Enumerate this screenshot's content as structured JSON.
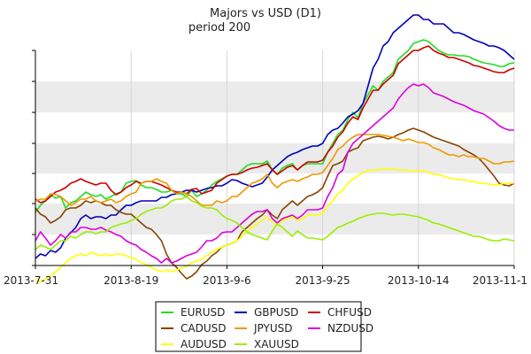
{
  "chart_data": {
    "type": "line",
    "title": "Majors vs USD (D1)",
    "subtitle": "period 200",
    "x_tick_labels": [
      "2013-7-31",
      "2013-8-19",
      "2013-9-6",
      "2013-9-25",
      "2013-10-14",
      "2013-11-1"
    ],
    "grid": true,
    "legend_position": "bottom",
    "colors": {
      "band": "#ebebeb",
      "axis": "#000000",
      "legend_border": "#000000"
    },
    "series": [
      {
        "name": "EURUSD",
        "color": "#22dd22",
        "values": [
          183,
          175,
          170,
          163,
          167,
          165,
          178,
          172,
          170,
          165,
          160,
          163,
          165,
          163,
          168,
          165,
          162,
          160,
          150,
          148,
          147,
          152,
          155,
          155,
          157,
          160,
          160,
          158,
          162,
          162,
          165,
          158,
          165,
          162,
          158,
          152,
          148,
          145,
          142,
          140,
          140,
          135,
          130,
          128,
          128,
          128,
          125,
          135,
          140,
          133,
          130,
          128,
          135,
          130,
          128,
          128,
          128,
          128,
          115,
          105,
          95,
          90,
          78,
          70,
          76,
          60,
          50,
          40,
          45,
          35,
          30,
          25,
          10,
          5,
          0,
          -8,
          -10,
          -12,
          -10,
          -5,
          0,
          3,
          5,
          5,
          6,
          6,
          7,
          10,
          12,
          14,
          15,
          16,
          18,
          18,
          15,
          14
        ]
      },
      {
        "name": "GBPUSD",
        "color": "#0000bb",
        "values": [
          235,
          230,
          232,
          226,
          228,
          223,
          212,
          206,
          200,
          190,
          186,
          190,
          188,
          188,
          190,
          186,
          186,
          180,
          175,
          175,
          172,
          170,
          170,
          170,
          170,
          166,
          166,
          163,
          162,
          160,
          158,
          158,
          160,
          158,
          156,
          155,
          153,
          153,
          150,
          146,
          147,
          150,
          152,
          154,
          152,
          150,
          143,
          135,
          130,
          125,
          120,
          117,
          115,
          112,
          110,
          108,
          108,
          105,
          95,
          90,
          88,
          82,
          75,
          72,
          68,
          60,
          40,
          20,
          10,
          -5,
          -10,
          -20,
          -25,
          -30,
          -35,
          -40,
          -40,
          -35,
          -35,
          -30,
          -30,
          -30,
          -25,
          -20,
          -20,
          -18,
          -15,
          -12,
          -10,
          -8,
          -5,
          -5,
          -3,
          0,
          5,
          10
        ]
      },
      {
        "name": "CHFUSD",
        "color": "#cc0000",
        "values": [
          168,
          172,
          170,
          165,
          160,
          158,
          155,
          150,
          148,
          145,
          148,
          150,
          152,
          150,
          150,
          158,
          163,
          160,
          155,
          152,
          148,
          150,
          148,
          148,
          150,
          152,
          155,
          158,
          160,
          160,
          162,
          157,
          156,
          162,
          160,
          158,
          150,
          146,
          142,
          140,
          140,
          138,
          135,
          133,
          132,
          130,
          128,
          135,
          140,
          136,
          132,
          130,
          135,
          130,
          126,
          126,
          126,
          124,
          115,
          108,
          98,
          92,
          82,
          75,
          78,
          65,
          55,
          45,
          45,
          38,
          33,
          28,
          15,
          10,
          5,
          0,
          0,
          -3,
          -5,
          0,
          3,
          5,
          8,
          8,
          10,
          12,
          14,
          17,
          18,
          20,
          22,
          24,
          25,
          25,
          22,
          20
        ]
      },
      {
        "name": "CADUSD",
        "color": "#884400",
        "values": [
          178,
          185,
          188,
          195,
          192,
          188,
          180,
          178,
          178,
          175,
          170,
          172,
          170,
          172,
          175,
          175,
          180,
          183,
          185,
          185,
          190,
          195,
          200,
          202,
          208,
          215,
          230,
          240,
          245,
          252,
          258,
          255,
          250,
          242,
          238,
          232,
          228,
          222,
          220,
          218,
          215,
          205,
          200,
          195,
          190,
          186,
          180,
          186,
          190,
          180,
          175,
          170,
          175,
          170,
          165,
          163,
          160,
          155,
          142,
          130,
          128,
          125,
          115,
          112,
          110,
          102,
          100,
          98,
          97,
          98,
          100,
          98,
          95,
          93,
          90,
          88,
          90,
          92,
          95,
          98,
          100,
          102,
          104,
          106,
          108,
          112,
          115,
          118,
          122,
          128,
          135,
          142,
          150,
          152,
          153,
          150
        ]
      },
      {
        "name": "JPYUSD",
        "color": "#ee9900",
        "values": [
          170,
          168,
          168,
          162,
          163,
          165,
          170,
          175,
          172,
          168,
          168,
          165,
          170,
          172,
          170,
          168,
          172,
          170,
          165,
          162,
          160,
          150,
          148,
          148,
          145,
          148,
          150,
          158,
          162,
          160,
          162,
          165,
          170,
          175,
          175,
          175,
          170,
          172,
          170,
          165,
          165,
          160,
          155,
          150,
          148,
          145,
          140,
          150,
          155,
          150,
          148,
          146,
          148,
          145,
          143,
          140,
          140,
          138,
          130,
          122,
          112,
          108,
          102,
          98,
          95,
          95,
          95,
          95,
          95,
          96,
          97,
          98,
          100,
          102,
          100,
          102,
          104,
          104,
          106,
          110,
          112,
          115,
          118,
          118,
          120,
          118,
          120,
          120,
          122,
          122,
          125,
          128,
          128,
          126,
          126,
          125
        ]
      },
      {
        "name": "NZDUSD",
        "color": "#dd00dd",
        "values": [
          215,
          205,
          212,
          220,
          215,
          208,
          212,
          205,
          205,
          200,
          200,
          202,
          202,
          200,
          203,
          205,
          208,
          210,
          215,
          218,
          220,
          225,
          228,
          232,
          235,
          240,
          235,
          240,
          238,
          235,
          232,
          230,
          228,
          222,
          215,
          215,
          212,
          206,
          205,
          205,
          200,
          195,
          190,
          185,
          182,
          182,
          180,
          190,
          195,
          190,
          188,
          186,
          190,
          186,
          180,
          180,
          180,
          178,
          165,
          155,
          140,
          135,
          115,
          105,
          100,
          95,
          90,
          85,
          80,
          75,
          70,
          65,
          55,
          48,
          42,
          38,
          40,
          38,
          42,
          48,
          50,
          52,
          55,
          58,
          60,
          62,
          65,
          68,
          70,
          72,
          76,
          80,
          85,
          88,
          90,
          90
        ]
      },
      {
        "name": "AUDUSD",
        "color": "#ffff00",
        "values": [
          258,
          262,
          258,
          255,
          250,
          245,
          240,
          235,
          232,
          230,
          232,
          228,
          230,
          232,
          230,
          232,
          230,
          230,
          232,
          234,
          236,
          240,
          242,
          245,
          248,
          250,
          248,
          250,
          248,
          246,
          244,
          240,
          238,
          236,
          232,
          228,
          225,
          222,
          220,
          218,
          215,
          210,
          205,
          200,
          196,
          192,
          188,
          194,
          198,
          192,
          190,
          188,
          192,
          190,
          186,
          186,
          186,
          184,
          176,
          170,
          162,
          158,
          150,
          145,
          142,
          138,
          136,
          135,
          135,
          134,
          134,
          134,
          135,
          135,
          136,
          136,
          136,
          136,
          138,
          140,
          140,
          142,
          144,
          145,
          146,
          146,
          148,
          148,
          150,
          150,
          151,
          152,
          152,
          150,
          150,
          150
        ]
      },
      {
        "name": "XAUUSD",
        "color": "#99ee00",
        "values": [
          225,
          220,
          222,
          225,
          220,
          215,
          215,
          210,
          212,
          208,
          205,
          205,
          207,
          205,
          205,
          200,
          198,
          196,
          195,
          192,
          190,
          185,
          182,
          180,
          178,
          178,
          175,
          170,
          168,
          168,
          165,
          170,
          172,
          176,
          178,
          178,
          180,
          186,
          190,
          192,
          195,
          200,
          205,
          208,
          210,
          212,
          214,
          204,
          196,
          200,
          205,
          210,
          204,
          208,
          212,
          212,
          213,
          214,
          210,
          205,
          200,
          198,
          195,
          193,
          190,
          188,
          186,
          185,
          184,
          184,
          185,
          186,
          185,
          185,
          186,
          187,
          188,
          190,
          192,
          195,
          196,
          198,
          200,
          202,
          204,
          206,
          208,
          210,
          210,
          212,
          214,
          215,
          215,
          213,
          214,
          215
        ]
      }
    ]
  }
}
